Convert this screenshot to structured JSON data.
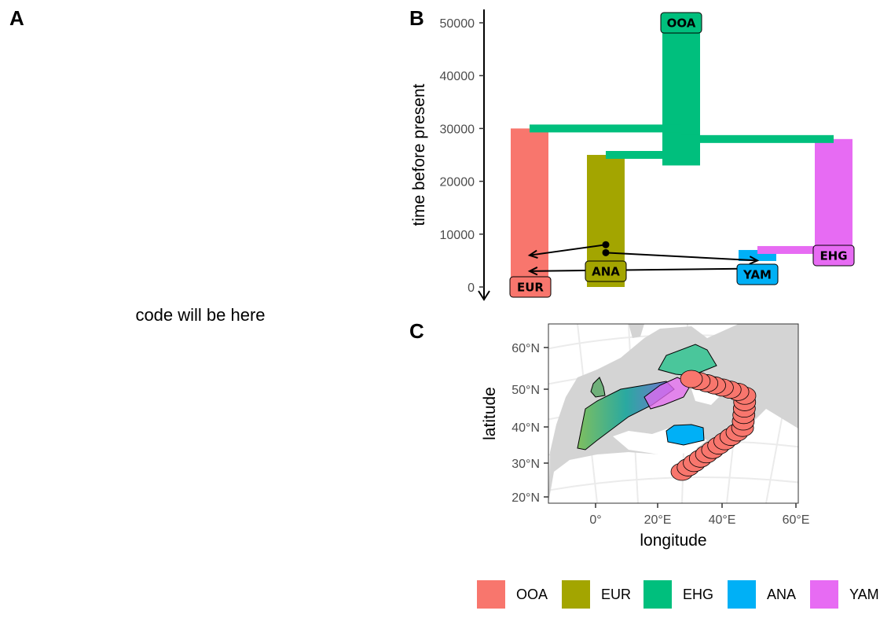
{
  "panels": {
    "a": "A",
    "b": "B",
    "c": "C"
  },
  "placeholder_text": "code will be here",
  "colors": {
    "OOA": "#F8766D",
    "EUR": "#A3A500",
    "EHG": "#00BF7D",
    "ANA": "#00B0F6",
    "YAM": "#E76BF3"
  },
  "chart_data": [
    {
      "type": "bar",
      "ylabel": "time before present",
      "xlabel": "",
      "ylim": [
        0,
        52000
      ],
      "y_ticks": [
        "0",
        "10000",
        "20000",
        "30000",
        "40000",
        "50000"
      ],
      "y_reversed_arrow": true,
      "populations": [
        {
          "name": "EUR",
          "color": "#F8766D",
          "start": 30000,
          "end": 0
        },
        {
          "name": "ANA",
          "color": "#A3A500",
          "start": 25000,
          "end": 0
        },
        {
          "name": "OOA",
          "color": "#00BF7D",
          "start": 52000,
          "end": 23000
        },
        {
          "name": "YAM",
          "color": "#00B0F6",
          "start": 7000,
          "end": 4000
        },
        {
          "name": "EHG",
          "color": "#E76BF3",
          "start": 28000,
          "end": 6000
        }
      ],
      "splits": [
        {
          "from": "OOA",
          "to": "EUR",
          "time": 30000
        },
        {
          "from": "OOA",
          "to": "ANA",
          "time": 25000
        },
        {
          "from": "OOA",
          "to": "EHG",
          "time": 28000
        },
        {
          "from": "EHG",
          "to": "YAM",
          "time": 7000
        }
      ],
      "gene_flows": [
        {
          "from": "ANA",
          "to": "EUR",
          "time_from": 8000,
          "time_to": 6000
        },
        {
          "from": "ANA",
          "to": "YAM",
          "time_from": 6500,
          "time_to": 5000
        },
        {
          "from": "YAM",
          "to": "EUR",
          "time_from": 3500,
          "time_to": 3000
        }
      ],
      "labels": [
        "OOA",
        "EUR",
        "ANA",
        "YAM",
        "EHG"
      ]
    },
    {
      "type": "map",
      "xlabel": "longitude",
      "ylabel": "latitude",
      "x_ticks": [
        "0°",
        "20°E",
        "40°E",
        "60°E"
      ],
      "y_ticks": [
        "20°N",
        "30°N",
        "40°N",
        "50°N",
        "60°N"
      ]
    }
  ],
  "legend": {
    "items": [
      {
        "label": "OOA",
        "color": "#F8766D"
      },
      {
        "label": "EUR",
        "color": "#A3A500"
      },
      {
        "label": "EHG",
        "color": "#00BF7D"
      },
      {
        "label": "ANA",
        "color": "#00B0F6"
      },
      {
        "label": "YAM",
        "color": "#E76BF3"
      }
    ]
  }
}
